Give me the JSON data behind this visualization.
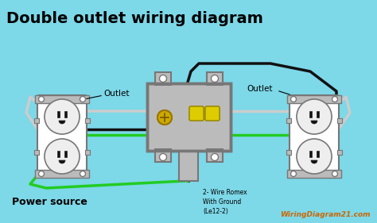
{
  "title": "Double outlet wiring diagram",
  "bg_color": "#7dd8e8",
  "title_color": "#000000",
  "title_fontsize": 14,
  "watermark": "WiringDiagram21.com",
  "watermark_color": "#cc6600",
  "label_power": "Power source",
  "label_outlet_left": "Outlet",
  "label_outlet_right": "Outlet",
  "label_wire": "2- Wire Romex\nWith Ground\n(Le12-2)",
  "outlet_color": "#ffffff",
  "box_color": "#aaaaaa",
  "wire_black": "#111111",
  "wire_green": "#22cc22",
  "wire_white": "#cccccc",
  "wire_yellow": "#ddcc00",
  "screw_gold": "#ccaa00",
  "lt_gray": "#bbbbbb",
  "dk_gray": "#777777"
}
